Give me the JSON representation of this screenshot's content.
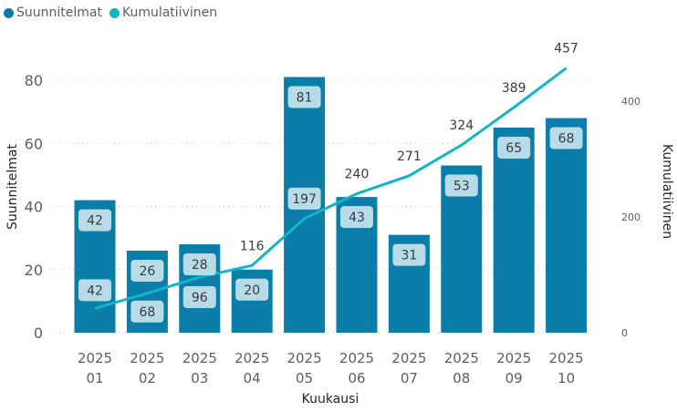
{
  "chart_data": {
    "type": "bar+line",
    "xlabel": "Kuukausi",
    "ylabel": "Suunnitelmat",
    "y2label": "Kumulatiivinen",
    "categories": [
      [
        "2025",
        "01"
      ],
      [
        "2025",
        "02"
      ],
      [
        "2025",
        "03"
      ],
      [
        "2025",
        "04"
      ],
      [
        "2025",
        "05"
      ],
      [
        "2025",
        "06"
      ],
      [
        "2025",
        "07"
      ],
      [
        "2025",
        "08"
      ],
      [
        "2025",
        "09"
      ],
      [
        "2025",
        "10"
      ]
    ],
    "series": [
      {
        "name": "Suunnitelmat",
        "type": "bar",
        "axis": "left",
        "color": "#0a7ea8",
        "values": [
          42,
          26,
          28,
          20,
          81,
          43,
          31,
          53,
          65,
          68
        ]
      },
      {
        "name": "Kumulatiivinen",
        "type": "line",
        "axis": "right",
        "color": "#12b5c8",
        "values": [
          42,
          68,
          96,
          116,
          197,
          240,
          271,
          324,
          389,
          457
        ]
      }
    ],
    "ylim": [
      0,
      80
    ],
    "yticks": [
      0,
      20,
      40,
      60,
      80
    ],
    "y2lim": [
      0,
      436
    ],
    "y2ticks": [
      0,
      200,
      400
    ],
    "legend": {
      "placement": "top-left",
      "items": [
        "Suunnitelmat",
        "Kumulatiivinen"
      ]
    },
    "grid": true
  }
}
